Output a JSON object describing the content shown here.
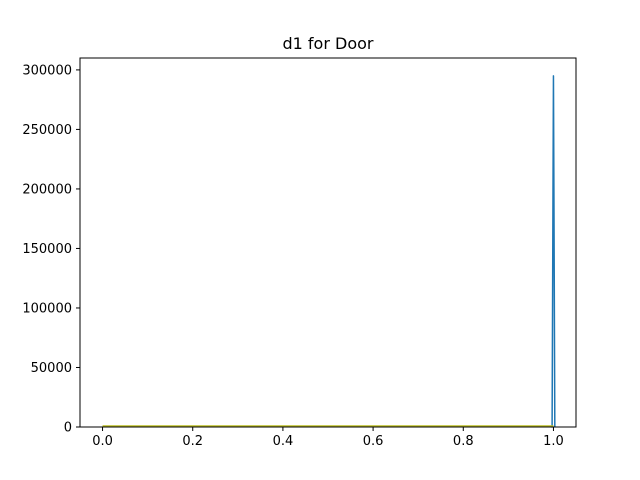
{
  "chart_data": {
    "type": "line",
    "title": "d1 for Door",
    "xlabel": "",
    "ylabel": "",
    "xlim": [
      -0.05,
      1.05
    ],
    "ylim": [
      0,
      310000
    ],
    "x_ticks": [
      0.0,
      0.2,
      0.4,
      0.6,
      0.8,
      1.0
    ],
    "x_tick_labels": [
      "0.0",
      "0.2",
      "0.4",
      "0.6",
      "0.8",
      "1.0"
    ],
    "y_ticks": [
      0,
      50000,
      100000,
      150000,
      200000,
      250000,
      300000
    ],
    "y_tick_labels": [
      "0",
      "50000",
      "100000",
      "150000",
      "200000",
      "250000",
      "300000"
    ],
    "grid": false,
    "legend": "none",
    "series": [
      {
        "color": "#1f77b4",
        "x": [
          0.0,
          0.2,
          0.4,
          0.6,
          0.8,
          0.995,
          0.997,
          0.999,
          1.0,
          1.001,
          1.003
        ],
        "y": [
          300,
          300,
          300,
          300,
          300,
          300,
          0,
          200000,
          295000,
          200000,
          0
        ]
      },
      {
        "color": "#bcbd22",
        "x": [
          0.0,
          0.2,
          0.4,
          0.6,
          0.8,
          1.0
        ],
        "y": [
          800,
          800,
          800,
          800,
          800,
          800
        ]
      }
    ]
  }
}
